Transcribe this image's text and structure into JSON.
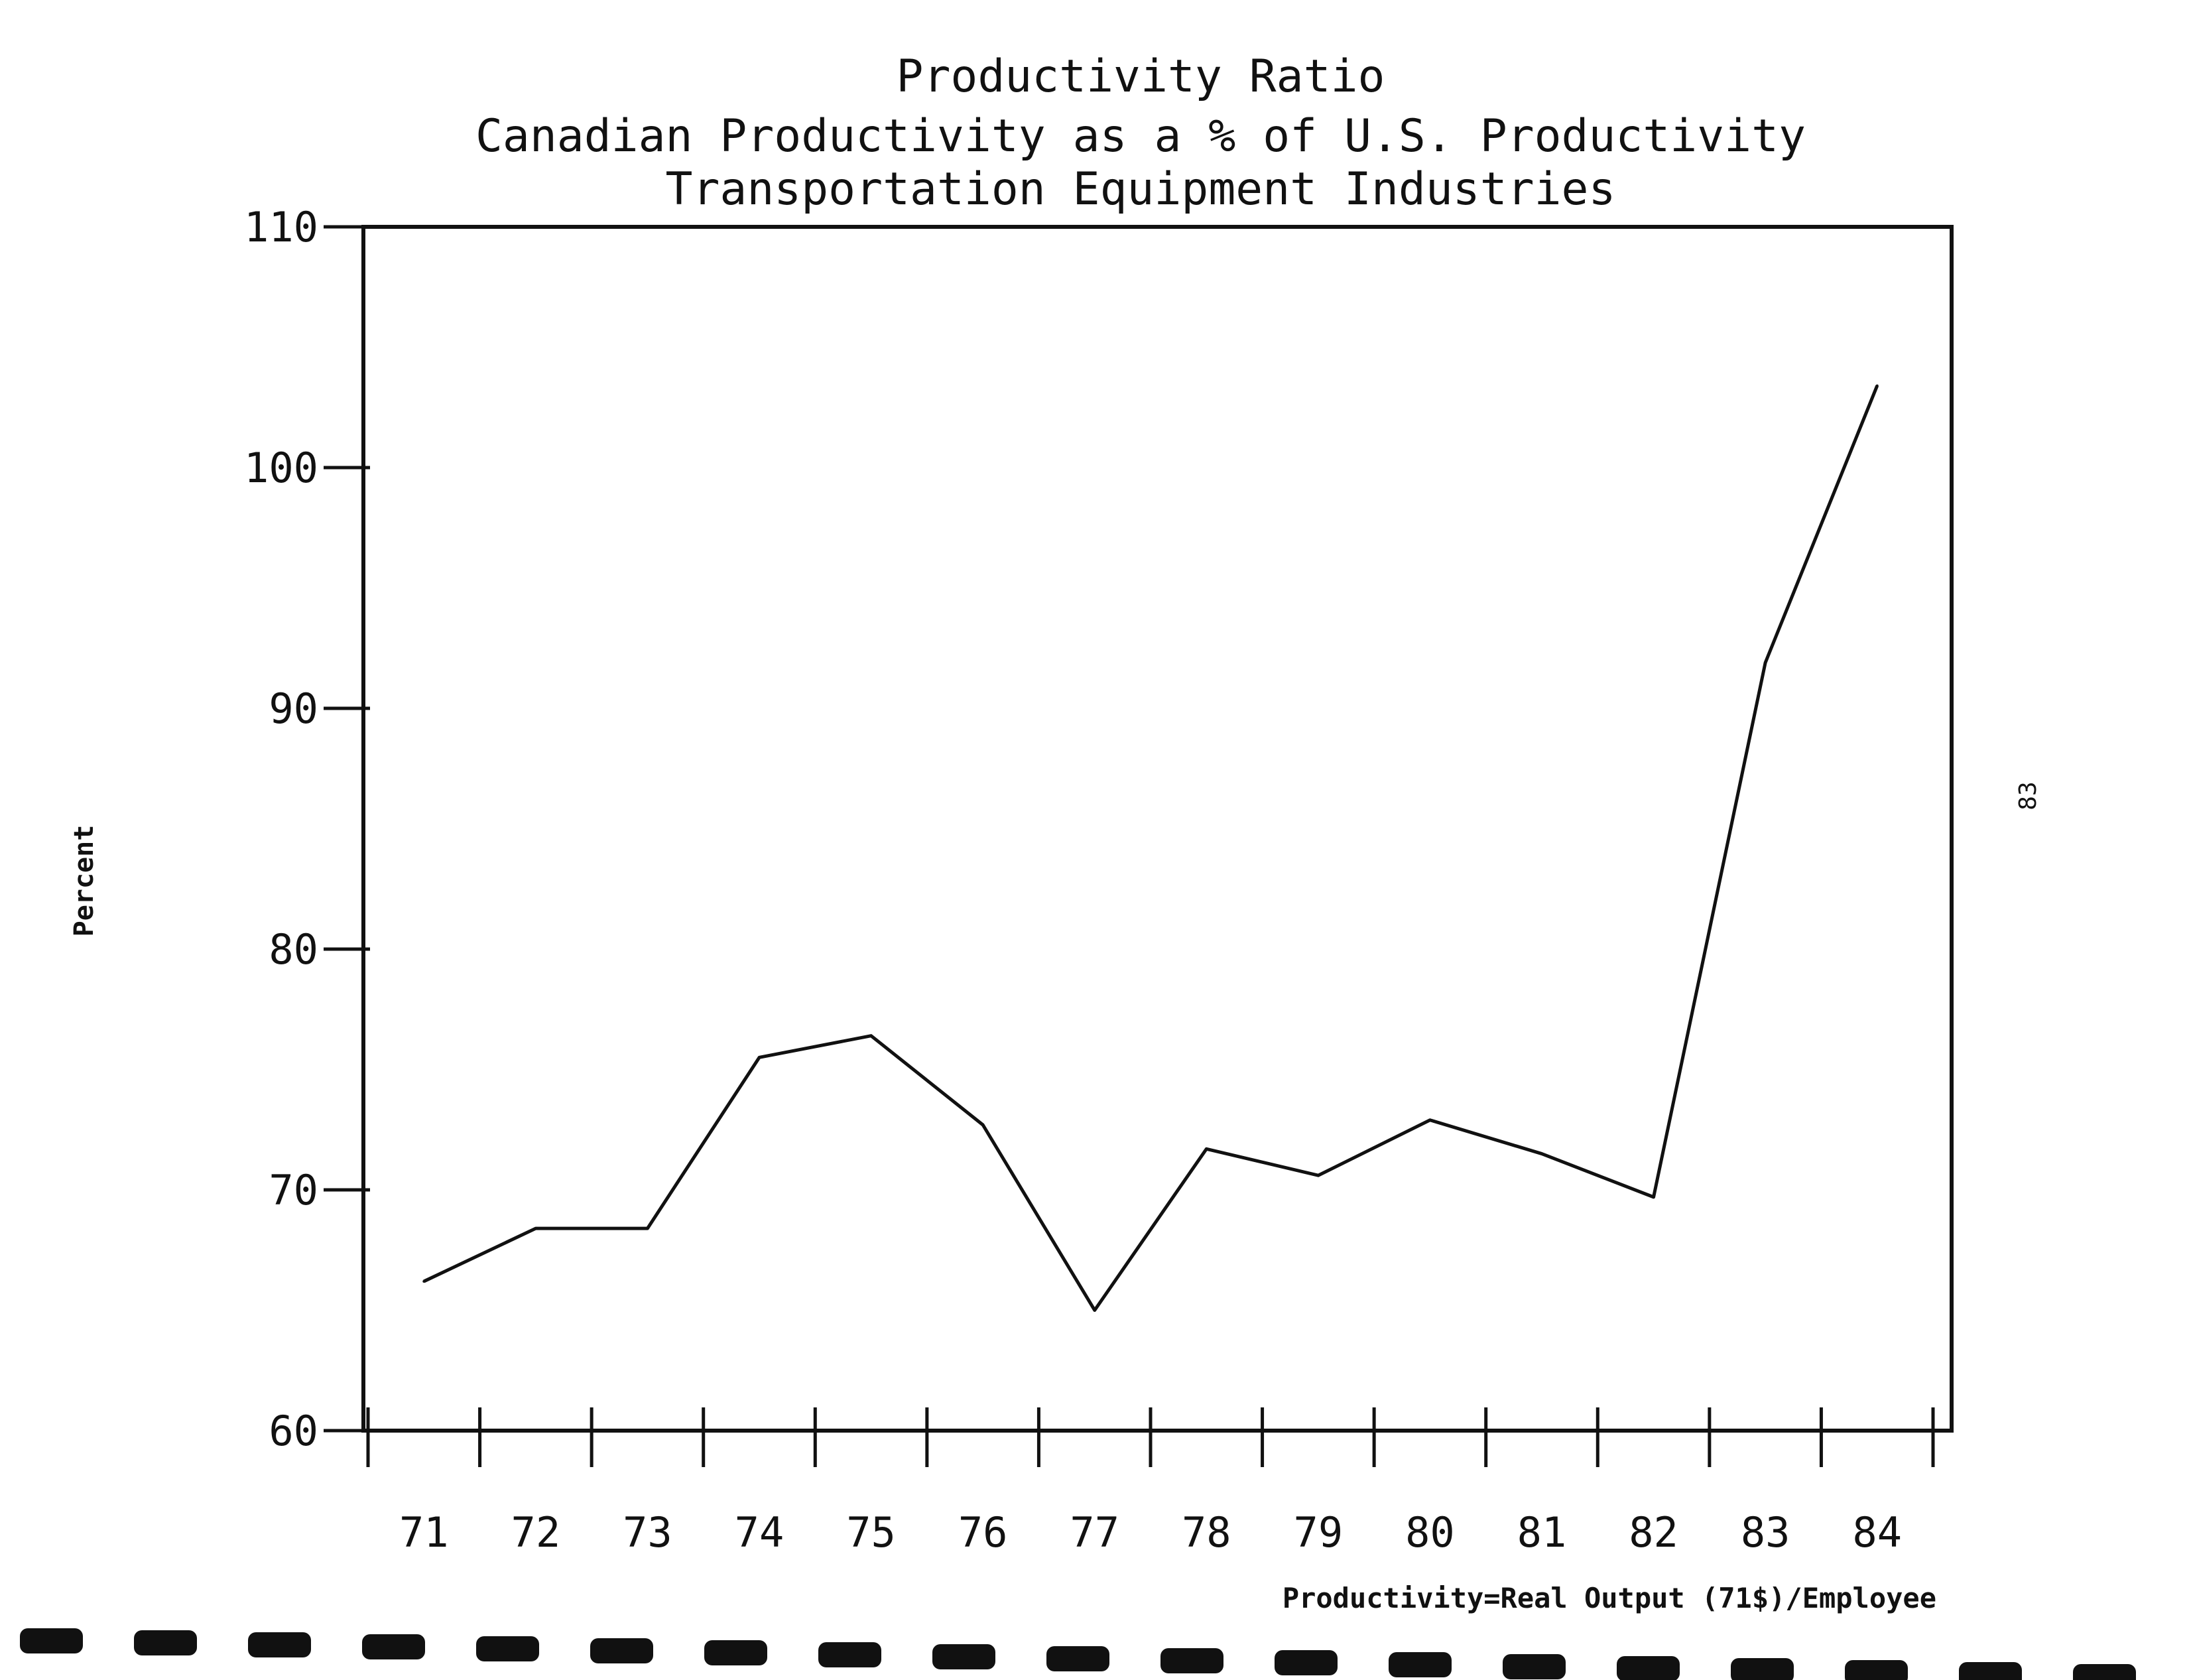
{
  "chart_data": {
    "type": "line",
    "title": "Productivity Ratio",
    "subtitle": [
      "Canadian Productivity as a % of U.S. Productivity",
      "Transportation Equipment Industries"
    ],
    "xlabel": "",
    "ylabel": "Percent",
    "note": "Productivity=Real Output (71$)/Employee",
    "categories": [
      "71",
      "72",
      "73",
      "74",
      "75",
      "76",
      "77",
      "78",
      "79",
      "80",
      "81",
      "82",
      "83",
      "84"
    ],
    "x": [
      71,
      72,
      73,
      74,
      75,
      76,
      77,
      78,
      79,
      80,
      81,
      82,
      83,
      84
    ],
    "values": [
      66.2,
      68.4,
      68.4,
      75.5,
      76.4,
      72.7,
      65.0,
      71.7,
      70.6,
      72.9,
      71.5,
      69.7,
      91.9,
      103.4
    ],
    "y_ticks": [
      60,
      70,
      80,
      90,
      100,
      110
    ],
    "ylim": [
      60,
      110
    ],
    "xlim": [
      70.5,
      84.5
    ],
    "grid": false,
    "legend": "none",
    "line_color": "#111111"
  },
  "page_number": "83"
}
